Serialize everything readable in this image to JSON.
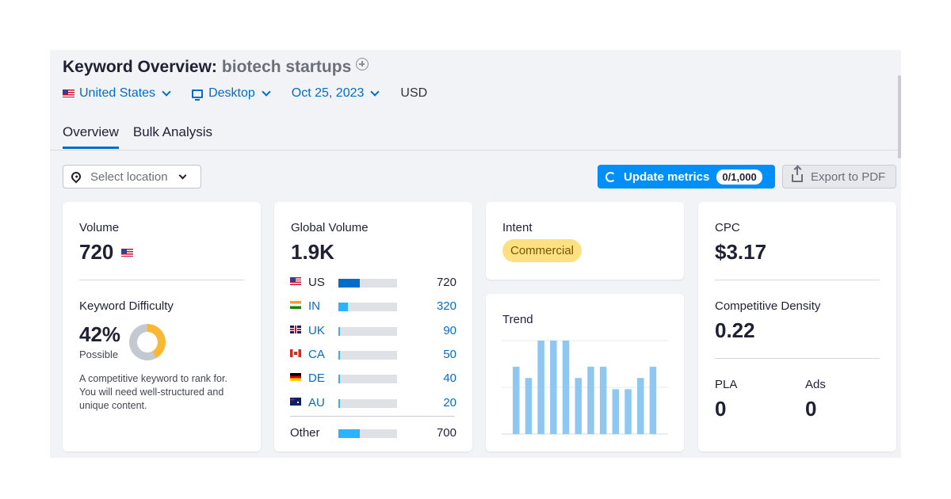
{
  "header": {
    "title": "Keyword Overview:",
    "keyword": "biotech startups"
  },
  "filters": {
    "country": "United States",
    "device": "Desktop",
    "date": "Oct 25, 2023",
    "currency": "USD"
  },
  "tabs": [
    {
      "label": "Overview",
      "active": true
    },
    {
      "label": "Bulk Analysis",
      "active": false
    }
  ],
  "toolbar": {
    "location_placeholder": "Select location",
    "update_label": "Update metrics",
    "update_counter": "0/1,000",
    "export_label": "Export to PDF"
  },
  "volume": {
    "label": "Volume",
    "value": "720"
  },
  "keyword_difficulty": {
    "label": "Keyword Difficulty",
    "value": "42%",
    "level": "Possible",
    "percent": 42,
    "description": "A competitive keyword to rank for. You will need well-structured and unique content."
  },
  "global_volume": {
    "label": "Global Volume",
    "value": "1.9K",
    "countries": [
      {
        "code": "US",
        "value": "720",
        "fraction": 0.36,
        "color": "#006dca",
        "flag": "us-flag-icon"
      },
      {
        "code": "IN",
        "value": "320",
        "fraction": 0.16,
        "color": "#2bb3ff",
        "flag": "india-flag-icon"
      },
      {
        "code": "UK",
        "value": "90",
        "fraction": 0.03,
        "color": "#2bb3ff",
        "flag": "uk-flag-icon"
      },
      {
        "code": "CA",
        "value": "50",
        "fraction": 0.02,
        "color": "#2bb3ff",
        "flag": "canada-flag-icon"
      },
      {
        "code": "DE",
        "value": "40",
        "fraction": 0.02,
        "color": "#2bb3ff",
        "flag": "germany-flag-icon"
      },
      {
        "code": "AU",
        "value": "20",
        "fraction": 0.01,
        "color": "#2bb3ff",
        "flag": "australia-flag-icon"
      }
    ],
    "other": {
      "label": "Other",
      "value": "700",
      "fraction": 0.36,
      "color": "#2bb3ff"
    }
  },
  "intent": {
    "label": "Intent",
    "value": "Commercial",
    "color": "#fce081"
  },
  "trend": {
    "label": "Trend",
    "bar_color": "#8ec8f2",
    "values": [
      0.72,
      0.6,
      1.0,
      1.0,
      1.0,
      0.6,
      0.72,
      0.72,
      0.48,
      0.48,
      0.6,
      0.72
    ]
  },
  "cpc": {
    "label": "CPC",
    "value": "$3.17"
  },
  "competitive_density": {
    "label": "Competitive Density",
    "value": "0.22"
  },
  "pla": {
    "label": "PLA",
    "value": "0"
  },
  "ads": {
    "label": "Ads",
    "value": "0"
  },
  "colors": {
    "accent": "#006dca",
    "primary_button": "#008ff8",
    "kd_fill": "#f9b833"
  }
}
